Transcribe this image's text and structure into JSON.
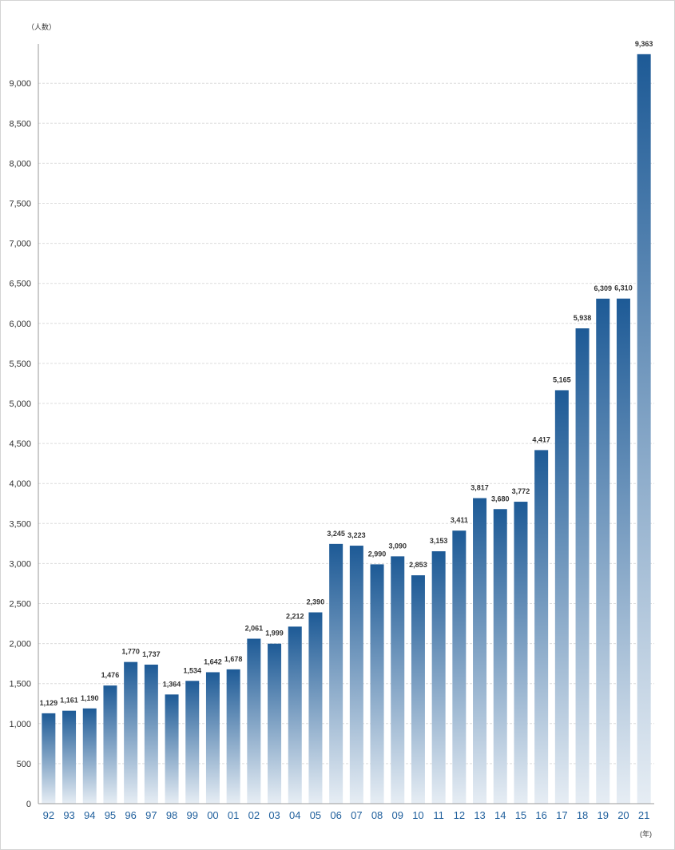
{
  "chart_data": {
    "type": "bar",
    "title": "",
    "xlabel": "",
    "ylabel": "",
    "y_unit_label": "（人数）",
    "x_unit_label": "(年)",
    "categories": [
      "92",
      "93",
      "94",
      "95",
      "96",
      "97",
      "98",
      "99",
      "00",
      "01",
      "02",
      "03",
      "04",
      "05",
      "06",
      "07",
      "08",
      "09",
      "10",
      "11",
      "12",
      "13",
      "14",
      "15",
      "16",
      "17",
      "18",
      "19",
      "20",
      "21"
    ],
    "values": [
      1129,
      1161,
      1190,
      1476,
      1770,
      1737,
      1364,
      1534,
      1642,
      1678,
      2061,
      1999,
      2212,
      2390,
      3245,
      3223,
      2990,
      3090,
      2853,
      3153,
      3411,
      3817,
      3680,
      3772,
      4417,
      5165,
      5938,
      6309,
      6310,
      9363
    ],
    "value_labels": [
      "1,129",
      "1,161",
      "1,190",
      "1,476",
      "1,770",
      "1,737",
      "1,364",
      "1,534",
      "1,642",
      "1,678",
      "2,061",
      "1,999",
      "2,212",
      "2,390",
      "3,245",
      "3,223",
      "2,990",
      "3,090",
      "2,853",
      "3,153",
      "3,411",
      "3,817",
      "3,680",
      "3,772",
      "4,417",
      "5,165",
      "5,938",
      "6,309",
      "6,310",
      "9,363"
    ],
    "ylim": [
      0,
      9500
    ],
    "yticks": [
      0,
      500,
      1000,
      1500,
      2000,
      2500,
      3000,
      3500,
      4000,
      4500,
      5000,
      5500,
      6000,
      6500,
      7000,
      7500,
      8000,
      8500,
      9000
    ],
    "ytick_labels": [
      "0",
      "500",
      "1,000",
      "1,500",
      "2,000",
      "2,500",
      "3,000",
      "3,500",
      "4,000",
      "4,500",
      "5,000",
      "5,500",
      "6,000",
      "6,500",
      "7,000",
      "7,500",
      "8,000",
      "8,500",
      "9,000"
    ],
    "grid": true,
    "legend": "none",
    "colors": {
      "bar_top": "#1d5a96",
      "bar_bottom": "#e6edf4",
      "grid": "#dcdcdc",
      "axis": "#9a9a9a",
      "xtick": "#1f5f9c"
    }
  }
}
